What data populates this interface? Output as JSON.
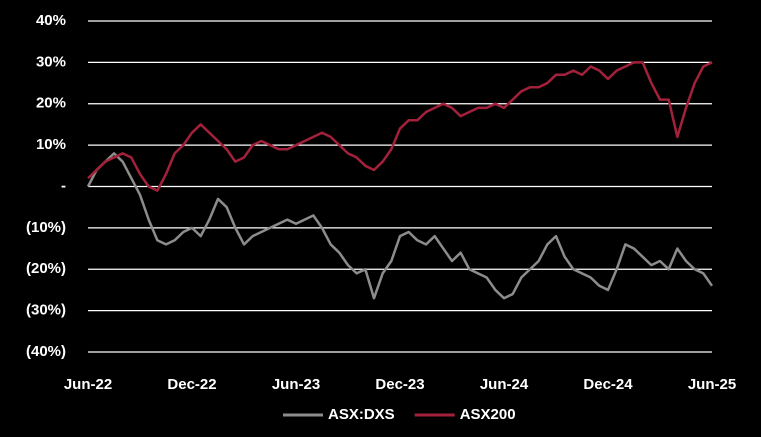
{
  "chart_data": {
    "type": "line",
    "categories": [
      "Jun-22",
      null,
      null,
      null,
      null,
      null,
      null,
      null,
      null,
      null,
      null,
      null,
      "Dec-22",
      null,
      null,
      null,
      null,
      null,
      null,
      null,
      null,
      null,
      null,
      null,
      "Jun-23",
      null,
      null,
      null,
      null,
      null,
      null,
      null,
      null,
      null,
      null,
      null,
      "Dec-23",
      null,
      null,
      null,
      null,
      null,
      null,
      null,
      null,
      null,
      null,
      null,
      "Jun-24",
      null,
      null,
      null,
      null,
      null,
      null,
      null,
      null,
      null,
      null,
      null,
      "Dec-24",
      null,
      null,
      null,
      null,
      null,
      null,
      null,
      null,
      null,
      null,
      null,
      "Jun-25"
    ],
    "series": [
      {
        "name": "ASX:DXS",
        "color": "#8c8c8c",
        "values": [
          0,
          4,
          6,
          8,
          6,
          2,
          -2,
          -8,
          -13,
          -14,
          -13,
          -11,
          -10,
          -12,
          -8,
          -3,
          -5,
          -10,
          -14,
          -12,
          -11,
          -10,
          -9,
          -8,
          -9,
          -8,
          -7,
          -10,
          -14,
          -16,
          -19,
          -21,
          -20,
          -27,
          -21,
          -18,
          -12,
          -11,
          -13,
          -14,
          -12,
          -15,
          -18,
          -16,
          -20,
          -21,
          -22,
          -25,
          -27,
          -26,
          -22,
          -20,
          -18,
          -14,
          -12,
          -17,
          -20,
          -21,
          -22,
          -24,
          -25,
          -20,
          -14,
          -15,
          -17,
          -19,
          -18,
          -20,
          -15,
          -18,
          -20,
          -21,
          -24
        ]
      },
      {
        "name": "ASX200",
        "color": "#a3213a",
        "values": [
          2,
          4,
          6,
          7,
          8,
          7,
          3,
          0,
          -1,
          3,
          8,
          10,
          13,
          15,
          13,
          11,
          9,
          6,
          7,
          10,
          11,
          10,
          9,
          9,
          10,
          11,
          12,
          13,
          12,
          10,
          8,
          7,
          5,
          4,
          6,
          9,
          14,
          16,
          16,
          18,
          19,
          20,
          19,
          17,
          18,
          19,
          19,
          20,
          19,
          21,
          23,
          24,
          24,
          25,
          27,
          27,
          28,
          27,
          29,
          28,
          26,
          28,
          29,
          30,
          30,
          25,
          21,
          21,
          12,
          19,
          25,
          29,
          30
        ]
      }
    ],
    "ylim": [
      -40,
      40
    ],
    "yticks": [
      {
        "value": 40,
        "label": "40%"
      },
      {
        "value": 30,
        "label": "30%"
      },
      {
        "value": 20,
        "label": "20%"
      },
      {
        "value": 10,
        "label": "10%"
      },
      {
        "value": 0,
        "label": "-"
      },
      {
        "value": -10,
        "label": "(10%)"
      },
      {
        "value": -20,
        "label": "(20%)"
      },
      {
        "value": -30,
        "label": "(30%)"
      },
      {
        "value": -40,
        "label": "(40%)"
      }
    ],
    "grid": true,
    "legend": "bottom"
  }
}
